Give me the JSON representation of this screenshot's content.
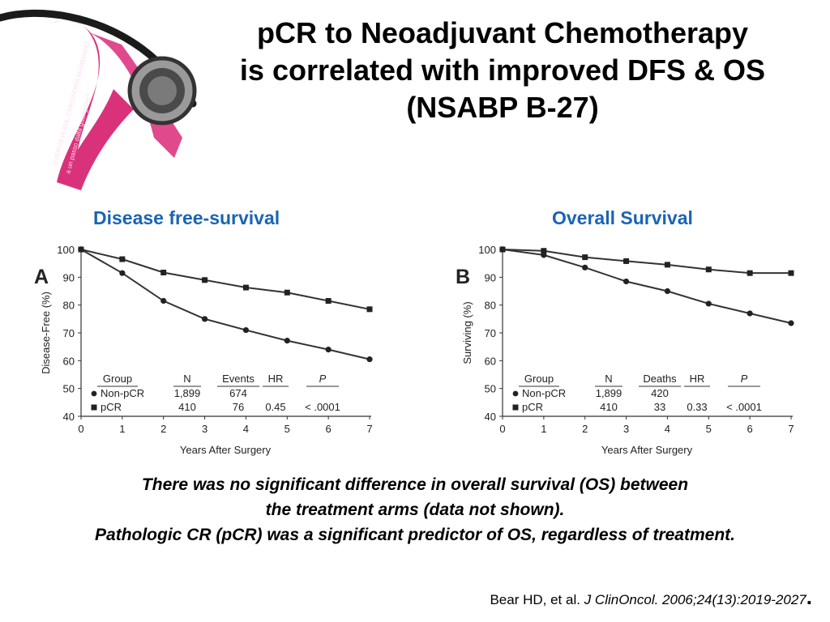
{
  "title": {
    "line1": "pCR to Neoadjuvant Chemotherapy",
    "line2": "is correlated with improved DFS & OS",
    "line3": "(NSABP B-27)"
  },
  "logo": {
    "ribbon_color": "#d9327a",
    "ribbon_text_1": "OVERVIEW SUL CARCINOMA MAMMARIO",
    "ribbon_text_2": "a un passo dalla guarigione?"
  },
  "chart_data": [
    {
      "type": "line",
      "heading": "Disease free-survival",
      "panel_label": "A",
      "ylabel": "Disease-Free (%)",
      "xlabel": "Years After Surgery",
      "xlim": [
        0,
        7
      ],
      "ylim": [
        40,
        100
      ],
      "xticks": [
        0,
        1,
        2,
        3,
        4,
        5,
        6,
        7
      ],
      "yticks": [
        40,
        50,
        60,
        70,
        80,
        90,
        100
      ],
      "grid": false,
      "series": [
        {
          "name": "Non-pCR",
          "marker": "circle",
          "x": [
            0,
            1,
            2,
            3,
            4,
            5,
            6,
            7
          ],
          "y": [
            100,
            91.5,
            81.5,
            75,
            71,
            67.2,
            64,
            60.5
          ]
        },
        {
          "name": "pCR",
          "marker": "square",
          "x": [
            0,
            1,
            2,
            3,
            4,
            5,
            6,
            7
          ],
          "y": [
            100,
            96.5,
            91.7,
            89,
            86.3,
            84.5,
            81.5,
            78.5
          ]
        }
      ],
      "table": {
        "headers": [
          "Group",
          "N",
          "Events",
          "HR",
          "P"
        ],
        "rows": [
          [
            "Non-pCR",
            "1,899",
            "674",
            "",
            ""
          ],
          [
            "pCR",
            "410",
            "76",
            "0.45",
            "< .0001"
          ]
        ]
      }
    },
    {
      "type": "line",
      "heading": "Overall Survival",
      "panel_label": "B",
      "ylabel": "Surviving (%)",
      "xlabel": "Years After Surgery",
      "xlim": [
        0,
        7
      ],
      "ylim": [
        40,
        100
      ],
      "xticks": [
        0,
        1,
        2,
        3,
        4,
        5,
        6,
        7
      ],
      "yticks": [
        40,
        50,
        60,
        70,
        80,
        90,
        100
      ],
      "grid": false,
      "series": [
        {
          "name": "Non-pCR",
          "marker": "circle",
          "x": [
            0,
            1,
            2,
            3,
            4,
            5,
            6,
            7
          ],
          "y": [
            100,
            98,
            93.5,
            88.5,
            85,
            80.5,
            77,
            73.5
          ]
        },
        {
          "name": "pCR",
          "marker": "square",
          "x": [
            0,
            1,
            2,
            3,
            4,
            5,
            6,
            7
          ],
          "y": [
            100,
            99.5,
            97.2,
            95.8,
            94.5,
            92.8,
            91.5,
            91.5
          ]
        }
      ],
      "table": {
        "headers": [
          "Group",
          "N",
          "Deaths",
          "HR",
          "P"
        ],
        "rows": [
          [
            "Non-pCR",
            "1,899",
            "420",
            "",
            ""
          ],
          [
            "pCR",
            "410",
            "33",
            "0.33",
            "< .0001"
          ]
        ]
      }
    }
  ],
  "notes": {
    "line1": "There was no significant difference in overall survival (OS) between",
    "line2": "the treatment arms (data not shown).",
    "line3": "Pathologic CR (pCR) was a significant predictor of OS, regardless of treatment."
  },
  "citation": {
    "authors": "Bear HD, et al. ",
    "journal": "J ClinOncol. 2006;24(13):2019-2027",
    "end": "."
  }
}
